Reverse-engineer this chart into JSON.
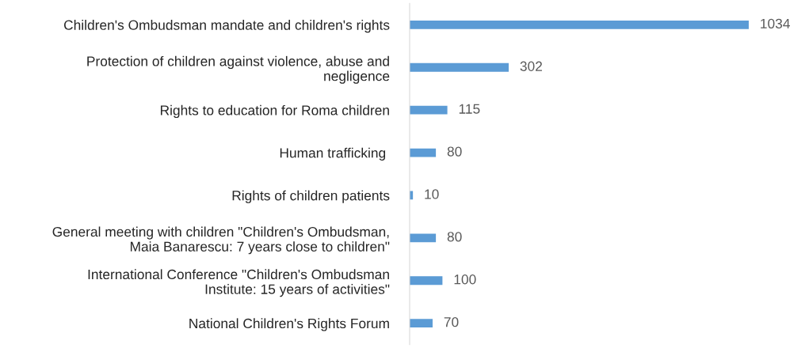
{
  "chart_data": {
    "type": "bar",
    "orientation": "horizontal",
    "categories": [
      "Children's Ombudsman mandate and children's rights",
      "Protection of children against violence, abuse and\nnegligence",
      "Rights to education for Roma children",
      "Human trafficking ",
      "Rights of children patients",
      "General meeting with children \"Children's Ombudsman,\nMaia Banarescu: 7 years close to children\"",
      "International Conference \"Children's Ombudsman\nInstitute: 15 years of activities\"",
      "National Children's Rights Forum"
    ],
    "values": [
      1034,
      302,
      115,
      80,
      10,
      80,
      100,
      70
    ],
    "color": "#5b9bd5",
    "data_labels": true
  }
}
